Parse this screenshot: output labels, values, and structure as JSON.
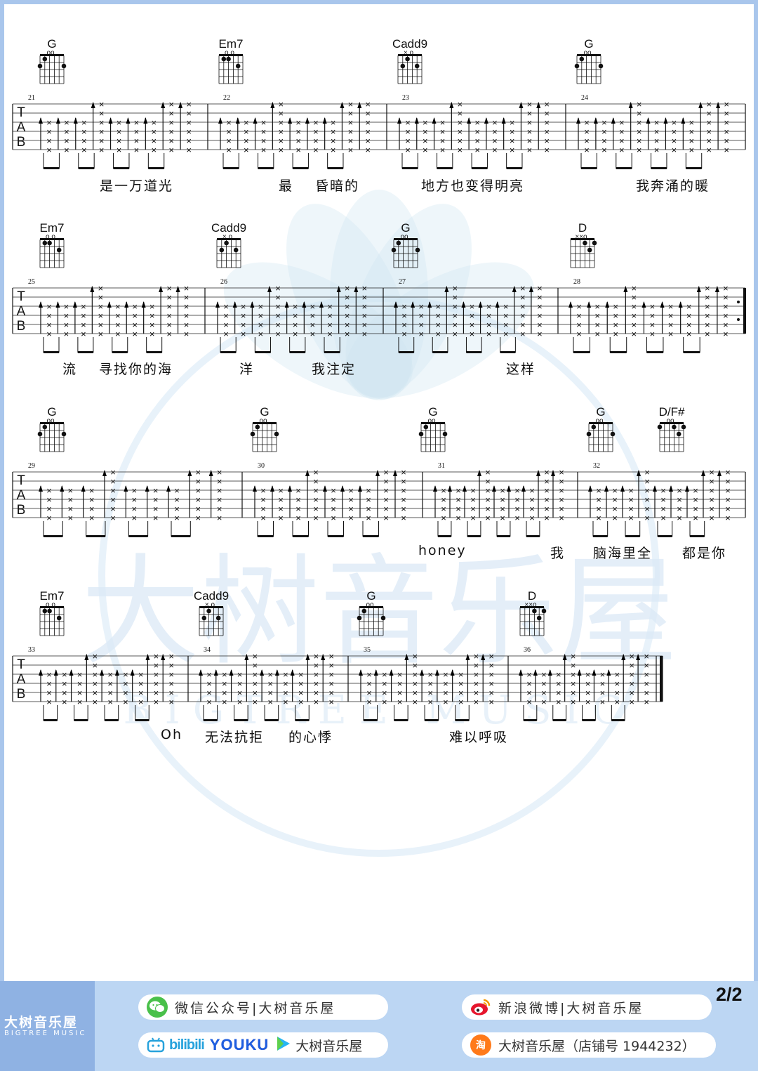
{
  "rows": [
    {
      "chords": [
        {
          "name": "G",
          "bar": 21,
          "open": "oo"
        },
        {
          "name": "Em7",
          "bar": 22,
          "open": "o   o"
        },
        {
          "name": "Cadd9",
          "bar": 23,
          "open": "×  o"
        },
        {
          "name": "G",
          "bar": 24,
          "open": "oo"
        }
      ],
      "bars": [
        21,
        22,
        23,
        24
      ],
      "lyrics": [
        {
          "text": "是一万道光"
        },
        {
          "text": "最"
        },
        {
          "text": "昏暗的"
        },
        {
          "text": "地方也变得明亮"
        },
        {
          "text": "我奔涌的暖"
        }
      ]
    },
    {
      "chords": [
        {
          "name": "Em7",
          "bar": 25,
          "open": "o   o"
        },
        {
          "name": "Cadd9",
          "bar": 26,
          "open": "×  o"
        },
        {
          "name": "G",
          "bar": 27,
          "open": "oo"
        },
        {
          "name": "D",
          "bar": 28,
          "open": "××o"
        }
      ],
      "bars": [
        25,
        26,
        27,
        28
      ],
      "lyrics": [
        {
          "text": "流"
        },
        {
          "text": "寻找你的海"
        },
        {
          "text": "洋"
        },
        {
          "text": "我注定"
        },
        {
          "text": "这样"
        }
      ]
    },
    {
      "chords": [
        {
          "name": "G",
          "bar": 29,
          "open": "oo"
        },
        {
          "name": "G",
          "bar": 30,
          "open": "oo"
        },
        {
          "name": "G",
          "bar": 31,
          "open": "oo"
        },
        {
          "name": "G",
          "bar": 32,
          "open": "oo"
        },
        {
          "name": "D/F#",
          "bar": 32,
          "open": "oo"
        }
      ],
      "bars": [
        29,
        30,
        31,
        32
      ],
      "lyrics": [
        {
          "text": "honey"
        },
        {
          "text": "我"
        },
        {
          "text": "脑海里全"
        },
        {
          "text": "都是你"
        }
      ]
    },
    {
      "chords": [
        {
          "name": "Em7",
          "bar": 33,
          "open": "o   o"
        },
        {
          "name": "Cadd9",
          "bar": 34,
          "open": "×  o"
        },
        {
          "name": "G",
          "bar": 35,
          "open": "oo"
        },
        {
          "name": "D",
          "bar": 36,
          "open": "××o"
        }
      ],
      "bars": [
        33,
        34,
        35,
        36
      ],
      "lyrics": [
        {
          "text": "Oh"
        },
        {
          "text": "无法抗拒"
        },
        {
          "text": "的心悸"
        },
        {
          "text": "难以呼吸"
        }
      ]
    }
  ],
  "tab_letters": [
    "T",
    "A",
    "B"
  ],
  "watermark": {
    "cn": "大树音乐屋",
    "en": "BIGTREE MUSIC"
  },
  "footer": {
    "brand_cn": "大树音乐屋",
    "brand_en": "BIGTREE MUSIC",
    "wechat": "微信公众号|大树音乐屋",
    "weibo": "新浪微博|大树音乐屋",
    "video_brand_bili": "bilibili",
    "video_brand_youku": "YOUKU",
    "video_channel": "大树音乐屋",
    "taobao": "大树音乐屋（店铺号 1944232）",
    "wechat_icon": "wechat-icon",
    "weibo_icon": "weibo-icon",
    "bilibili_icon": "bilibili-icon",
    "youku_icon": "youku-play-icon",
    "taobao_icon": "taobao-icon",
    "taobao_icon_char": "淘"
  },
  "page_indicator": "2/2",
  "colors": {
    "border": "#a9c6ec",
    "footer_bg": "#bcd6f3",
    "brand_bg": "#8fb2e3",
    "watermark": "#d6e8f6"
  }
}
